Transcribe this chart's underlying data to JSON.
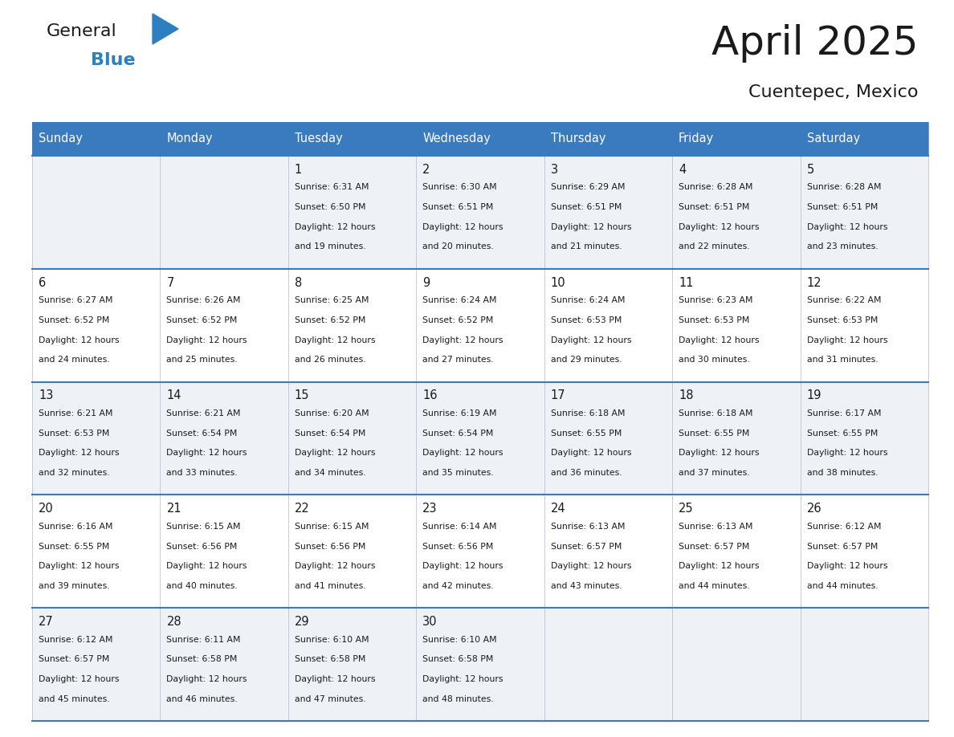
{
  "title": "April 2025",
  "subtitle": "Cuentepec, Mexico",
  "header_bg": "#3a7abf",
  "header_text": "#ffffff",
  "row_bg_odd": "#eef2f7",
  "row_bg_even": "#ffffff",
  "border_color": "#3a7abf",
  "cell_border_color": "#b0b8c8",
  "day_headers": [
    "Sunday",
    "Monday",
    "Tuesday",
    "Wednesday",
    "Thursday",
    "Friday",
    "Saturday"
  ],
  "calendar_data": [
    [
      {
        "day": "",
        "sunrise": "",
        "sunset": "",
        "daylight": ""
      },
      {
        "day": "",
        "sunrise": "",
        "sunset": "",
        "daylight": ""
      },
      {
        "day": "1",
        "sunrise": "6:31 AM",
        "sunset": "6:50 PM",
        "daylight": "12 hours and 19 minutes."
      },
      {
        "day": "2",
        "sunrise": "6:30 AM",
        "sunset": "6:51 PM",
        "daylight": "12 hours and 20 minutes."
      },
      {
        "day": "3",
        "sunrise": "6:29 AM",
        "sunset": "6:51 PM",
        "daylight": "12 hours and 21 minutes."
      },
      {
        "day": "4",
        "sunrise": "6:28 AM",
        "sunset": "6:51 PM",
        "daylight": "12 hours and 22 minutes."
      },
      {
        "day": "5",
        "sunrise": "6:28 AM",
        "sunset": "6:51 PM",
        "daylight": "12 hours and 23 minutes."
      }
    ],
    [
      {
        "day": "6",
        "sunrise": "6:27 AM",
        "sunset": "6:52 PM",
        "daylight": "12 hours and 24 minutes."
      },
      {
        "day": "7",
        "sunrise": "6:26 AM",
        "sunset": "6:52 PM",
        "daylight": "12 hours and 25 minutes."
      },
      {
        "day": "8",
        "sunrise": "6:25 AM",
        "sunset": "6:52 PM",
        "daylight": "12 hours and 26 minutes."
      },
      {
        "day": "9",
        "sunrise": "6:24 AM",
        "sunset": "6:52 PM",
        "daylight": "12 hours and 27 minutes."
      },
      {
        "day": "10",
        "sunrise": "6:24 AM",
        "sunset": "6:53 PM",
        "daylight": "12 hours and 29 minutes."
      },
      {
        "day": "11",
        "sunrise": "6:23 AM",
        "sunset": "6:53 PM",
        "daylight": "12 hours and 30 minutes."
      },
      {
        "day": "12",
        "sunrise": "6:22 AM",
        "sunset": "6:53 PM",
        "daylight": "12 hours and 31 minutes."
      }
    ],
    [
      {
        "day": "13",
        "sunrise": "6:21 AM",
        "sunset": "6:53 PM",
        "daylight": "12 hours and 32 minutes."
      },
      {
        "day": "14",
        "sunrise": "6:21 AM",
        "sunset": "6:54 PM",
        "daylight": "12 hours and 33 minutes."
      },
      {
        "day": "15",
        "sunrise": "6:20 AM",
        "sunset": "6:54 PM",
        "daylight": "12 hours and 34 minutes."
      },
      {
        "day": "16",
        "sunrise": "6:19 AM",
        "sunset": "6:54 PM",
        "daylight": "12 hours and 35 minutes."
      },
      {
        "day": "17",
        "sunrise": "6:18 AM",
        "sunset": "6:55 PM",
        "daylight": "12 hours and 36 minutes."
      },
      {
        "day": "18",
        "sunrise": "6:18 AM",
        "sunset": "6:55 PM",
        "daylight": "12 hours and 37 minutes."
      },
      {
        "day": "19",
        "sunrise": "6:17 AM",
        "sunset": "6:55 PM",
        "daylight": "12 hours and 38 minutes."
      }
    ],
    [
      {
        "day": "20",
        "sunrise": "6:16 AM",
        "sunset": "6:55 PM",
        "daylight": "12 hours and 39 minutes."
      },
      {
        "day": "21",
        "sunrise": "6:15 AM",
        "sunset": "6:56 PM",
        "daylight": "12 hours and 40 minutes."
      },
      {
        "day": "22",
        "sunrise": "6:15 AM",
        "sunset": "6:56 PM",
        "daylight": "12 hours and 41 minutes."
      },
      {
        "day": "23",
        "sunrise": "6:14 AM",
        "sunset": "6:56 PM",
        "daylight": "12 hours and 42 minutes."
      },
      {
        "day": "24",
        "sunrise": "6:13 AM",
        "sunset": "6:57 PM",
        "daylight": "12 hours and 43 minutes."
      },
      {
        "day": "25",
        "sunrise": "6:13 AM",
        "sunset": "6:57 PM",
        "daylight": "12 hours and 44 minutes."
      },
      {
        "day": "26",
        "sunrise": "6:12 AM",
        "sunset": "6:57 PM",
        "daylight": "12 hours and 44 minutes."
      }
    ],
    [
      {
        "day": "27",
        "sunrise": "6:12 AM",
        "sunset": "6:57 PM",
        "daylight": "12 hours and 45 minutes."
      },
      {
        "day": "28",
        "sunrise": "6:11 AM",
        "sunset": "6:58 PM",
        "daylight": "12 hours and 46 minutes."
      },
      {
        "day": "29",
        "sunrise": "6:10 AM",
        "sunset": "6:58 PM",
        "daylight": "12 hours and 47 minutes."
      },
      {
        "day": "30",
        "sunrise": "6:10 AM",
        "sunset": "6:58 PM",
        "daylight": "12 hours and 48 minutes."
      },
      {
        "day": "",
        "sunrise": "",
        "sunset": "",
        "daylight": ""
      },
      {
        "day": "",
        "sunrise": "",
        "sunset": "",
        "daylight": ""
      },
      {
        "day": "",
        "sunrise": "",
        "sunset": "",
        "daylight": ""
      }
    ]
  ],
  "logo_general_color": "#1a1a1a",
  "logo_blue_color": "#2e7fc1",
  "background_color": "#ffffff",
  "fig_width": 11.88,
  "fig_height": 9.18,
  "dpi": 100
}
